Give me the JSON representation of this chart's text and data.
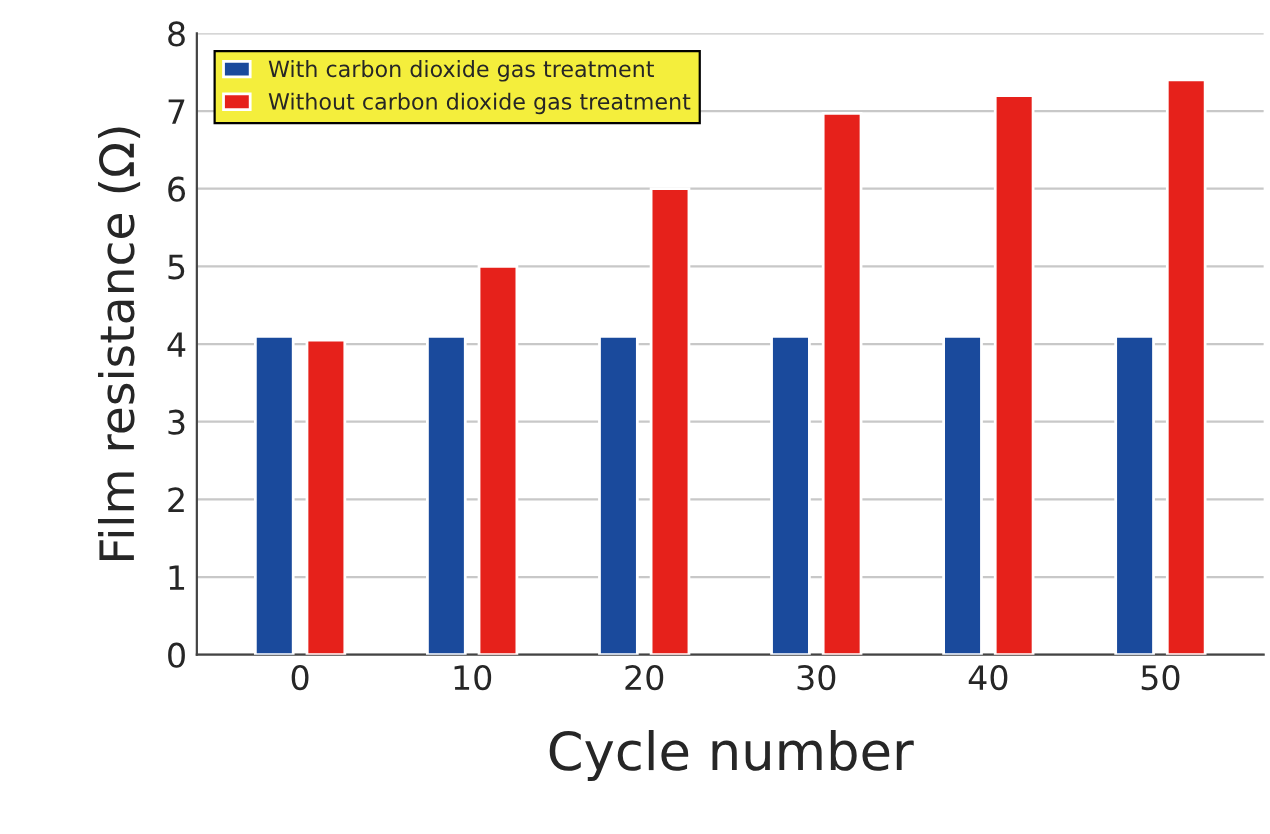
{
  "chart_data": {
    "type": "bar",
    "xlabel": "Cycle number",
    "ylabel": "Film resistance (Ω)",
    "categories": [
      "0",
      "10",
      "20",
      "30",
      "40",
      "50"
    ],
    "series": [
      {
        "name": "With carbon dioxide gas treatment",
        "color": "#1a4a9c",
        "values": [
          4.1,
          4.1,
          4.1,
          4.1,
          4.1,
          4.1
        ]
      },
      {
        "name": "Without carbon dioxide gas treatment",
        "color": "#e6211b",
        "values": [
          4.05,
          5.0,
          6.0,
          6.97,
          7.2,
          7.4
        ]
      }
    ],
    "ylim": [
      0,
      8
    ],
    "yticks": [
      0,
      1,
      2,
      3,
      4,
      5,
      6,
      7,
      8
    ],
    "grid": "y",
    "legend": "top left"
  }
}
